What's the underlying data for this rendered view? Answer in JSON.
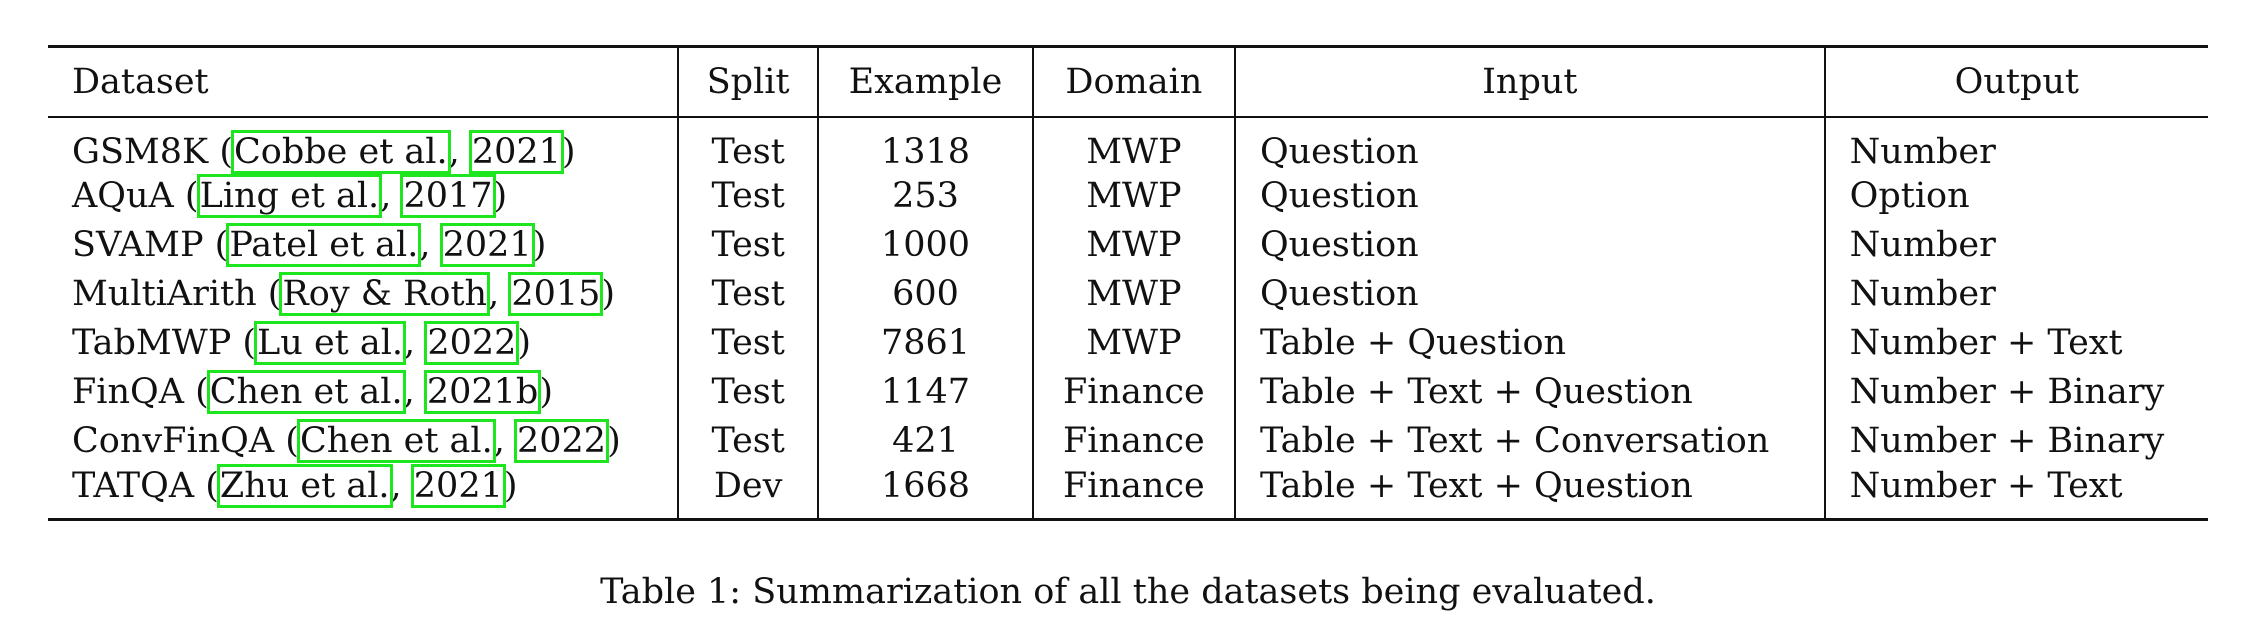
{
  "table": {
    "headers": [
      "Dataset",
      "Split",
      "Example",
      "Domain",
      "Input",
      "Output"
    ],
    "rows": [
      {
        "name": "GSM8K",
        "author": "Cobbe et al.",
        "year": "2021",
        "split": "Test",
        "example": "1318",
        "domain": "MWP",
        "input": "Question",
        "output": "Number"
      },
      {
        "name": "AQuA",
        "author": "Ling et al.",
        "year": "2017",
        "split": "Test",
        "example": "253",
        "domain": "MWP",
        "input": "Question",
        "output": "Option"
      },
      {
        "name": "SVAMP",
        "author": "Patel et al.",
        "year": "2021",
        "split": "Test",
        "example": "1000",
        "domain": "MWP",
        "input": "Question",
        "output": "Number"
      },
      {
        "name": "MultiArith",
        "author": "Roy & Roth",
        "year": "2015",
        "split": "Test",
        "example": "600",
        "domain": "MWP",
        "input": "Question",
        "output": "Number"
      },
      {
        "name": "TabMWP",
        "author": "Lu et al.",
        "year": "2022",
        "split": "Test",
        "example": "7861",
        "domain": "MWP",
        "input": "Table + Question",
        "output": "Number + Text"
      },
      {
        "name": "FinQA",
        "author": "Chen et al.",
        "year": "2021b",
        "split": "Test",
        "example": "1147",
        "domain": "Finance",
        "input": "Table + Text + Question",
        "output": "Number + Binary"
      },
      {
        "name": "ConvFinQA",
        "author": "Chen et al.",
        "year": "2022",
        "split": "Test",
        "example": "421",
        "domain": "Finance",
        "input": "Table + Text + Conversation",
        "output": "Number + Binary"
      },
      {
        "name": "TATQA",
        "author": "Zhu et al.",
        "year": "2021",
        "split": "Dev",
        "example": "1668",
        "domain": "Finance",
        "input": "Table + Text + Question",
        "output": "Number + Text"
      }
    ]
  },
  "caption": "Table 1: Summarization of all the datasets being evaluated.",
  "colors": {
    "citation_box": "#1ee61e",
    "rule": "#111111"
  }
}
